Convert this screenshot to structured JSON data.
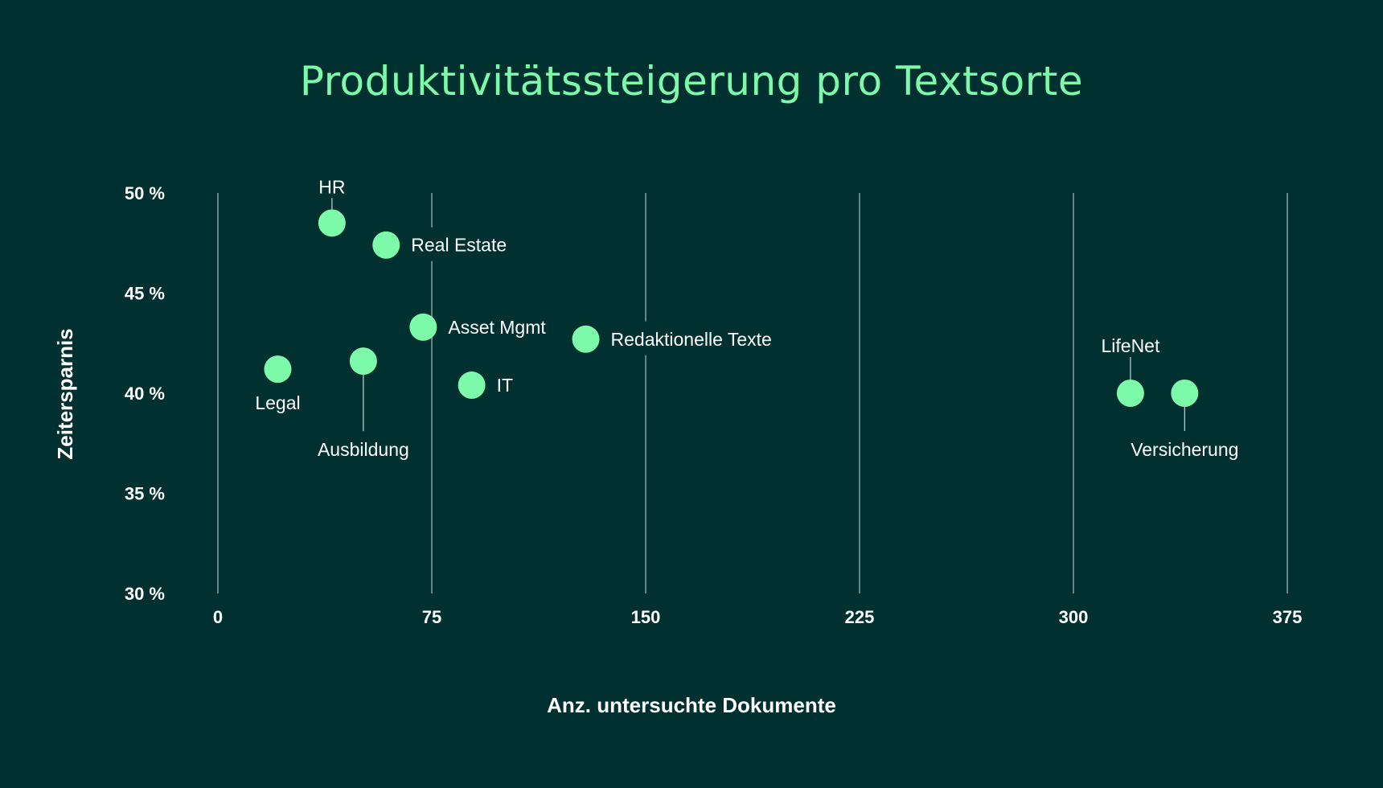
{
  "colors": {
    "background": "#003030",
    "accent": "#7dfaa9",
    "text": "#ffffff",
    "grid": "#a9bcb8"
  },
  "chart_data": {
    "type": "scatter",
    "title": "Produktivitätssteigerung pro Textsorte",
    "xlabel": "Anz. untersuchte Dokumente",
    "ylabel": "Zeitersparnis",
    "xlim": [
      0,
      375
    ],
    "ylim": [
      30,
      50
    ],
    "xticks": [
      0,
      75,
      150,
      225,
      300,
      375
    ],
    "xtick_labels": [
      "0",
      "75",
      "150",
      "225",
      "300",
      "375"
    ],
    "yticks": [
      50,
      45,
      40,
      35,
      30
    ],
    "ytick_labels": [
      "50 %",
      "45 %",
      "40 %",
      "35 %",
      "30 %"
    ],
    "grid": "vertical",
    "points": [
      {
        "label": "HR",
        "x": 40,
        "y": 48.5,
        "label_pos": "above-leader"
      },
      {
        "label": "Real Estate",
        "x": 59,
        "y": 47.4,
        "label_pos": "right"
      },
      {
        "label": "Asset Mgmt",
        "x": 72,
        "y": 43.3,
        "label_pos": "right"
      },
      {
        "label": "Redaktionelle Texte",
        "x": 129,
        "y": 42.7,
        "label_pos": "right"
      },
      {
        "label": "Legal",
        "x": 21,
        "y": 41.2,
        "label_pos": "below"
      },
      {
        "label": "Ausbildung",
        "x": 51,
        "y": 41.6,
        "label_pos": "below-leader"
      },
      {
        "label": "IT",
        "x": 89,
        "y": 40.4,
        "label_pos": "right"
      },
      {
        "label": "LifeNet",
        "x": 320,
        "y": 40,
        "label_pos": "above-leader"
      },
      {
        "label": "Versicherung",
        "x": 339,
        "y": 40,
        "label_pos": "below-leader"
      }
    ]
  }
}
